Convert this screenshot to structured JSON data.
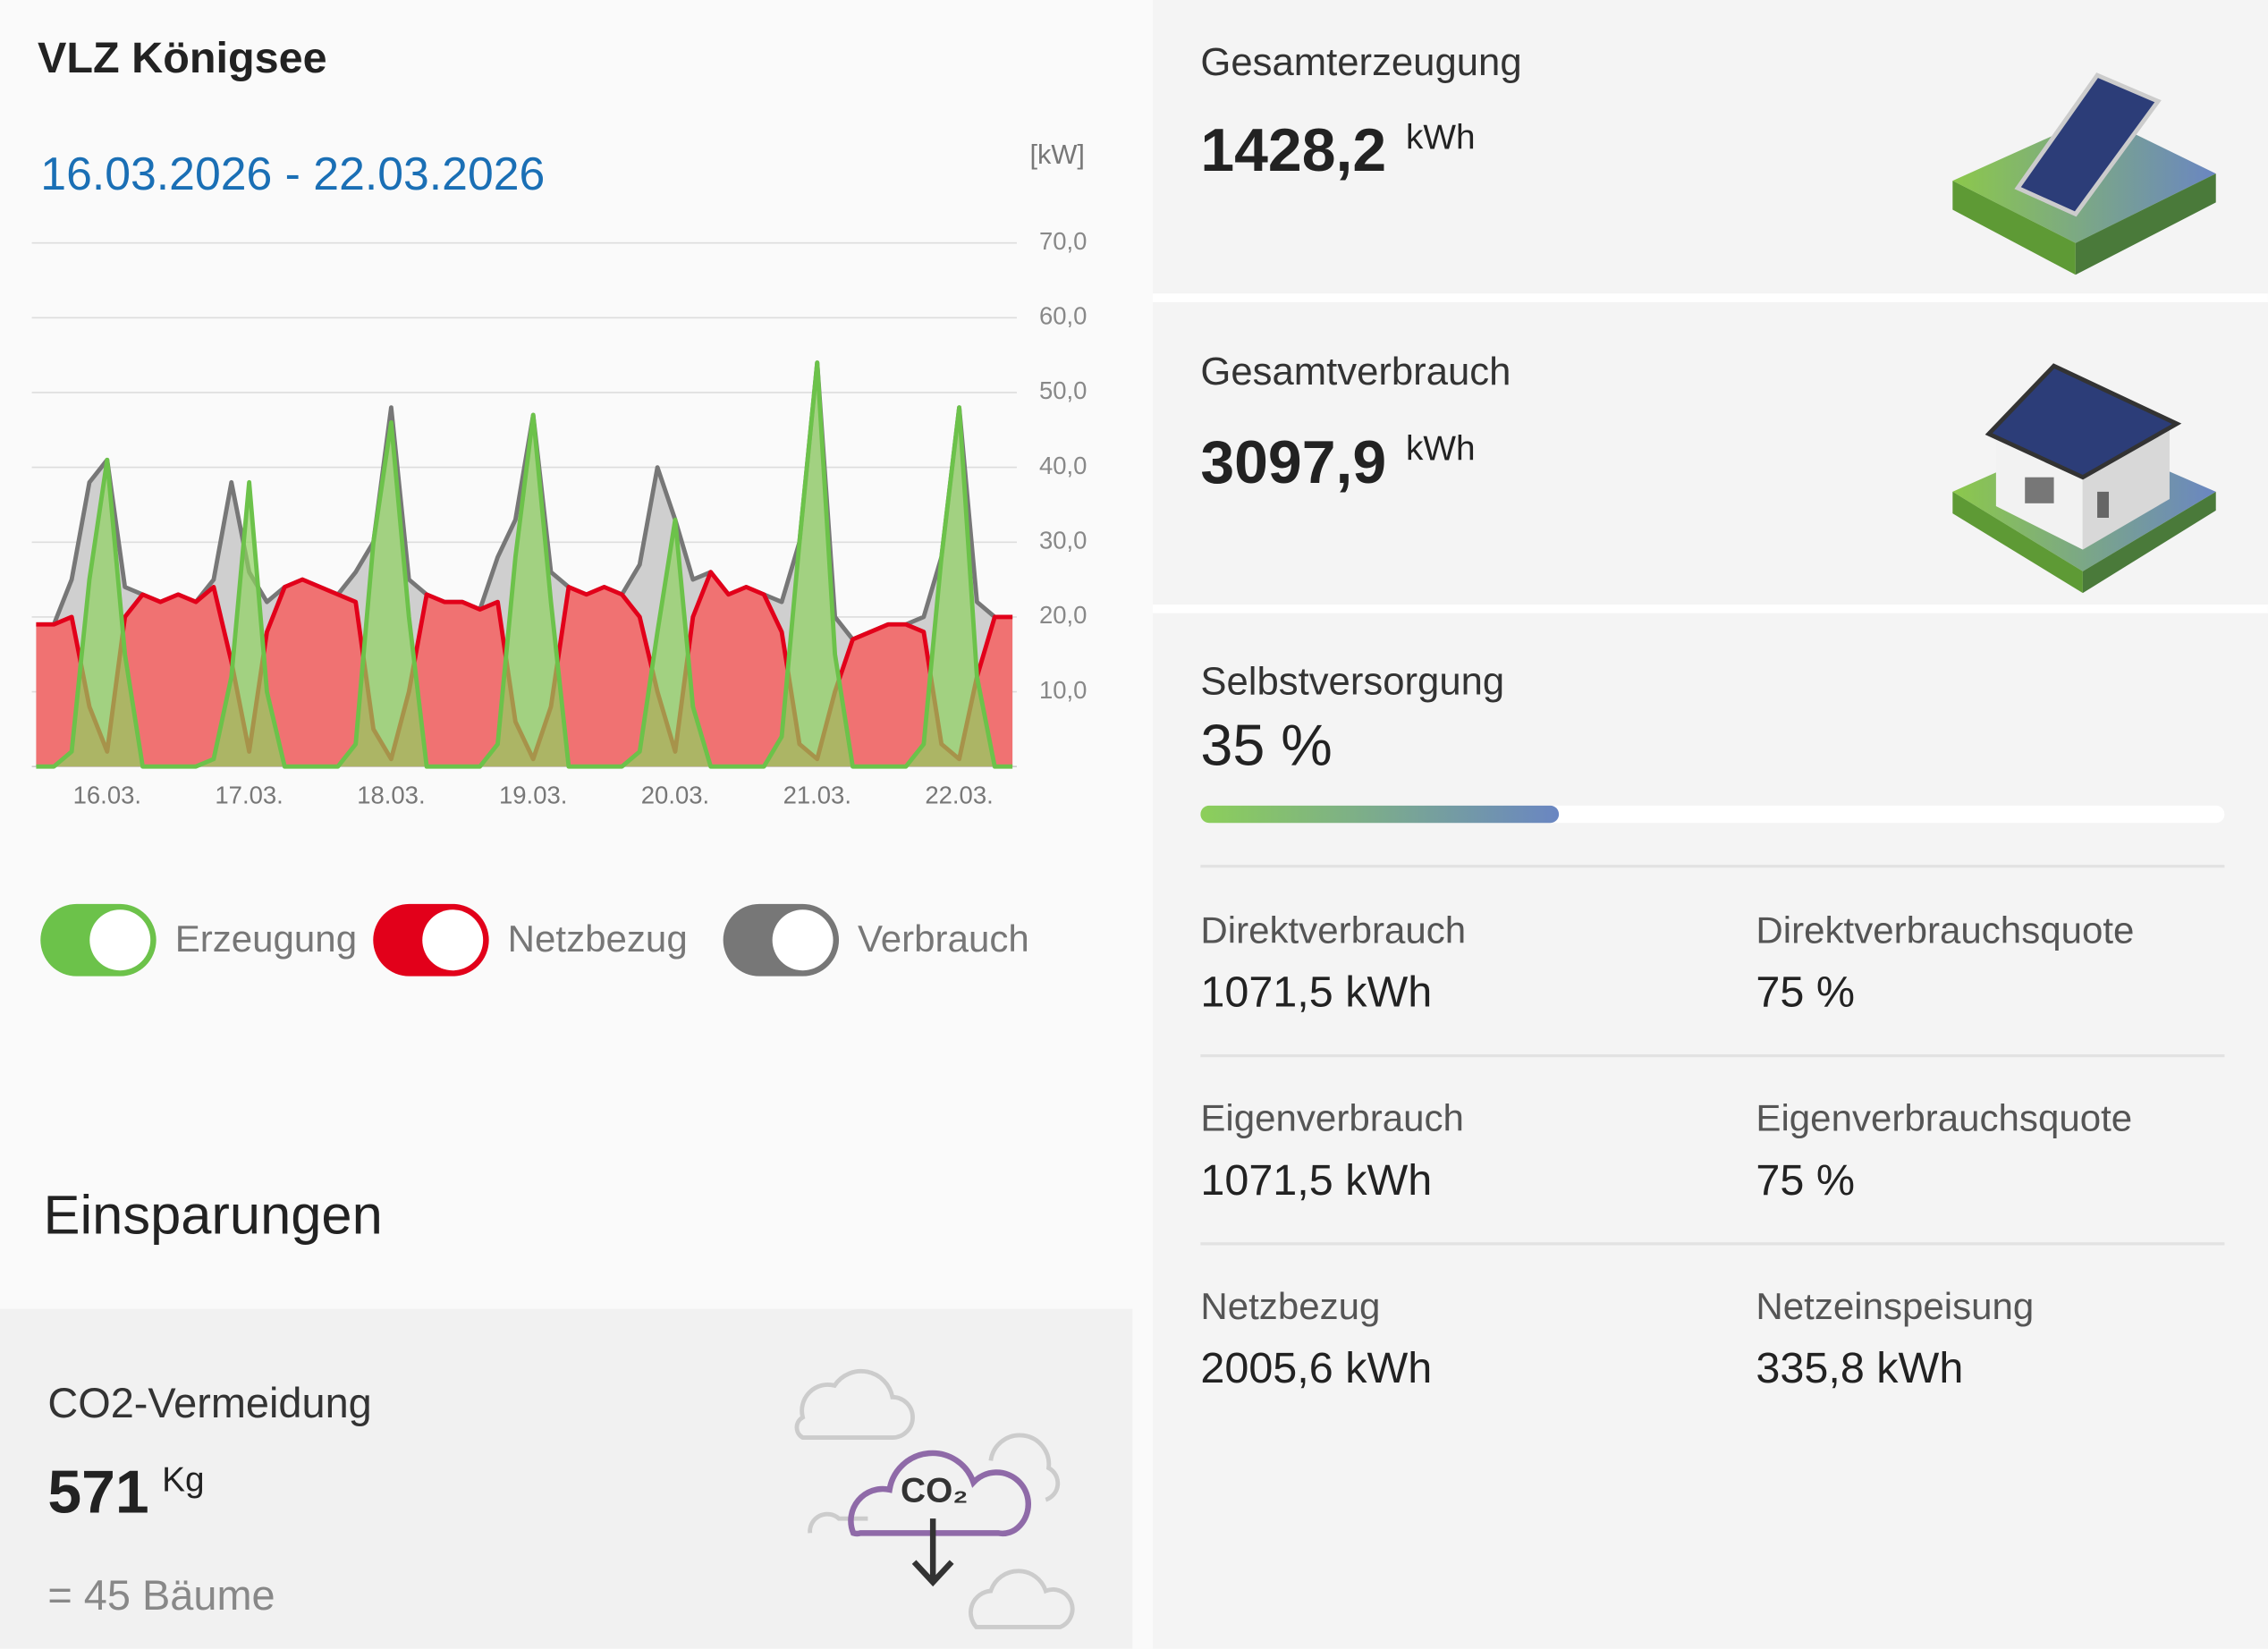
{
  "header": {
    "title": "VLZ Königsee",
    "date_range": "16.03.2026 - 22.03.2026"
  },
  "chart_data": {
    "type": "area",
    "y_unit": "[kW]",
    "categories": [
      null,
      null,
      null,
      null,
      "16.03.",
      null,
      null,
      null,
      null,
      null,
      null,
      null,
      "17.03.",
      null,
      null,
      null,
      null,
      null,
      null,
      null,
      "18.03.",
      null,
      null,
      null,
      null,
      null,
      null,
      null,
      "19.03.",
      null,
      null,
      null,
      null,
      null,
      null,
      null,
      "20.03.",
      null,
      null,
      null,
      null,
      null,
      null,
      null,
      "21.03.",
      null,
      null,
      null,
      null,
      null,
      null,
      null,
      "22.03.",
      null,
      null,
      null
    ],
    "series": [
      {
        "name": "Verbrauch",
        "color": "#777777",
        "values": [
          19,
          19,
          25,
          38,
          41,
          24,
          23,
          22,
          23,
          22,
          25,
          38,
          26,
          22,
          24,
          25,
          24,
          23,
          26,
          30,
          48,
          25,
          23,
          22,
          22,
          21,
          28,
          33,
          47,
          26,
          24,
          23,
          24,
          23,
          27,
          40,
          33,
          25,
          26,
          23,
          24,
          23,
          22,
          30,
          54,
          20,
          17,
          18,
          19,
          19,
          20,
          28,
          48,
          22,
          20,
          20
        ]
      },
      {
        "name": "Netzbezug",
        "color": "#e2001a",
        "values": [
          19,
          19,
          20,
          8,
          2,
          20,
          23,
          22,
          23,
          22,
          24,
          14,
          2,
          18,
          24,
          25,
          24,
          23,
          22,
          5,
          1,
          10,
          23,
          22,
          22,
          21,
          22,
          6,
          1,
          8,
          24,
          23,
          24,
          23,
          20,
          10,
          2,
          20,
          26,
          23,
          24,
          23,
          18,
          3,
          1,
          10,
          17,
          18,
          19,
          19,
          18,
          3,
          1,
          12,
          20,
          20
        ]
      },
      {
        "name": "Erzeugung",
        "color": "#6cc24a",
        "values": [
          0,
          0,
          2,
          25,
          41,
          15,
          0,
          0,
          0,
          0,
          1,
          12,
          38,
          10,
          0,
          0,
          0,
          0,
          3,
          30,
          46,
          20,
          0,
          0,
          0,
          0,
          3,
          28,
          47,
          22,
          0,
          0,
          0,
          0,
          2,
          18,
          33,
          8,
          0,
          0,
          0,
          0,
          4,
          30,
          54,
          15,
          0,
          0,
          0,
          0,
          3,
          28,
          48,
          12,
          0,
          0
        ]
      }
    ],
    "ylim": [
      0,
      70
    ],
    "yticks": [
      {
        "value": 10,
        "label": "10,0"
      },
      {
        "value": 20,
        "label": "20,0"
      },
      {
        "value": 30,
        "label": "30,0"
      },
      {
        "value": 40,
        "label": "40,0"
      },
      {
        "value": 50,
        "label": "50,0"
      },
      {
        "value": 60,
        "label": "60,0"
      },
      {
        "value": 70,
        "label": "70,0"
      }
    ],
    "grid": true
  },
  "savings": {
    "title": "Einsparungen",
    "co2": {
      "label": "CO2-Vermeidung",
      "value": "571",
      "unit": "Kg",
      "equivalent": "= 45 Bäume",
      "icon_label": "CO₂"
    }
  },
  "summary": {
    "generation": {
      "label": "Gesamterzeugung",
      "value": "1428,2",
      "unit": "kWh"
    },
    "consumption": {
      "label": "Gesamtverbrauch",
      "value": "3097,9",
      "unit": "kWh"
    },
    "self_supply": {
      "label": "Selbstversorgung",
      "value": 35,
      "value_label": "35 %"
    },
    "stats": [
      {
        "label": "Direktverbrauch",
        "value": "1071,5 kWh"
      },
      {
        "label": "Direktverbrauchsquote",
        "value": "75 %"
      },
      {
        "label": "Eigenverbrauch",
        "value": "1071,5 kWh"
      },
      {
        "label": "Eigenverbrauchsquote",
        "value": "75 %"
      },
      {
        "label": "Netzbezug",
        "value": "2005,6 kWh"
      },
      {
        "label": "Netzeinspeisung",
        "value": "335,8 kWh"
      }
    ]
  }
}
